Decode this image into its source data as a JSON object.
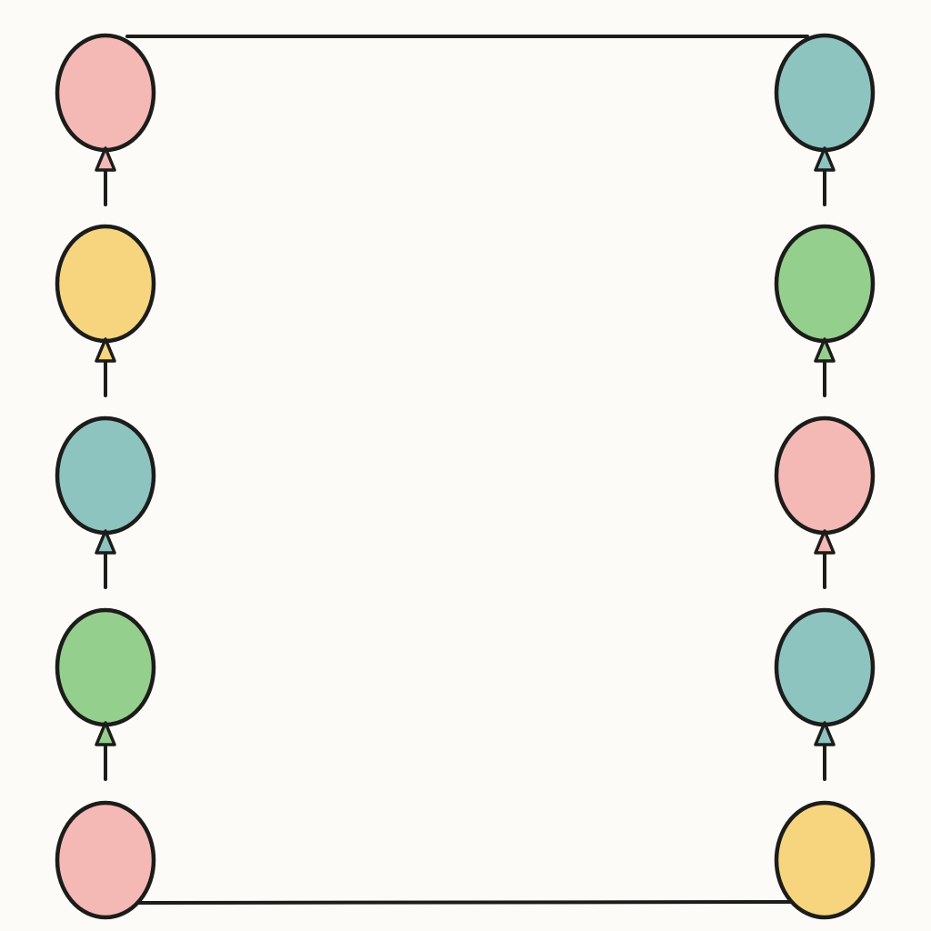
{
  "background_color": "#fcfbf8",
  "frame_color": "#1c1c1a",
  "balloon_colors": {
    "pink": "#f4b8b5",
    "teal": "#8dc4bf",
    "yellow": "#f6d57e",
    "green": "#95cf8e"
  },
  "left_column": [
    "pink",
    "yellow",
    "teal",
    "green",
    "pink"
  ],
  "right_column": [
    "teal",
    "green",
    "pink",
    "teal",
    "yellow"
  ],
  "strings_on_last_balloon": false
}
